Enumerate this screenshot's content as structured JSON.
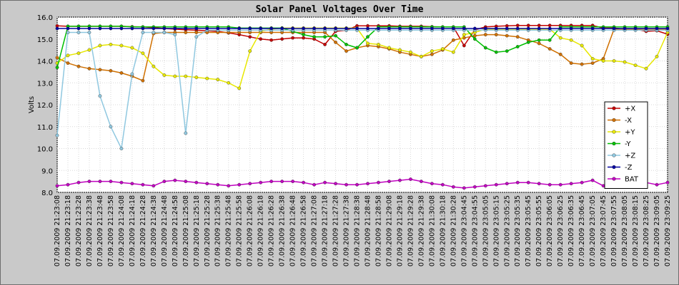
{
  "chart_data": {
    "type": "line",
    "title": "Solar Panel Voltages Over Time",
    "xlabel": "",
    "ylabel": "Volts",
    "ylim": [
      8.0,
      16.0
    ],
    "yticks": [
      "8.0",
      "9.0",
      "10.0",
      "11.0",
      "12.0",
      "13.0",
      "14.0",
      "15.0",
      "16.0"
    ],
    "grid": true,
    "legend_position": "right",
    "x": [
      "07.09.2009 21:23:08",
      "07.09.2009 21:23:18",
      "07.09.2009 21:23:28",
      "07.09.2009 21:23:38",
      "07.09.2009 21:23:48",
      "07.09.2009 21:23:58",
      "07.09.2009 21:24:08",
      "07.09.2009 21:24:18",
      "07.09.2009 21:24:28",
      "07.09.2009 21:24:38",
      "07.09.2009 21:24:48",
      "07.09.2009 21:24:58",
      "07.09.2009 21:25:08",
      "07.09.2009 21:25:18",
      "07.09.2009 21:25:28",
      "07.09.2009 21:25:38",
      "07.09.2009 21:25:48",
      "07.09.2009 21:25:58",
      "07.09.2009 21:26:08",
      "07.09.2009 21:26:18",
      "07.09.2009 21:26:28",
      "07.09.2009 21:26:38",
      "07.09.2009 21:26:48",
      "07.09.2009 21:26:58",
      "07.09.2009 21:27:08",
      "07.09.2009 21:27:18",
      "07.09.2009 21:27:28",
      "07.09.2009 21:27:38",
      "07.09.2009 21:28:38",
      "07.09.2009 21:28:48",
      "07.09.2009 21:28:58",
      "07.09.2009 21:29:08",
      "07.09.2009 21:29:18",
      "07.09.2009 21:29:28",
      "07.09.2009 21:29:38",
      "07.09.2009 21:30:08",
      "07.09.2009 21:30:18",
      "07.09.2009 21:30:28",
      "07.09.2009 23:04:45",
      "07.09.2009 23:04:55",
      "07.09.2009 23:05:05",
      "07.09.2009 23:05:15",
      "07.09.2009 23:05:25",
      "07.09.2009 23:05:35",
      "07.09.2009 23:05:45",
      "07.09.2009 23:05:55",
      "07.09.2009 23:06:05",
      "07.09.2009 23:06:25",
      "07.09.2009 23:06:35",
      "07.09.2009 23:06:45",
      "07.09.2009 23:07:05",
      "07.09.2009 23:07:45",
      "07.09.2009 23:07:55",
      "07.09.2009 23:08:05",
      "07.09.2009 23:08:15",
      "07.09.2009 23:08:25",
      "07.09.2009 23:09:05",
      "07.09.2009 23:09:25"
    ],
    "series": [
      {
        "name": "+X",
        "color": "#c40000",
        "values": [
          15.6,
          15.58,
          15.58,
          15.58,
          15.58,
          15.58,
          15.58,
          15.56,
          15.55,
          15.52,
          15.48,
          15.45,
          15.42,
          15.4,
          15.38,
          15.35,
          15.28,
          15.2,
          15.1,
          15.0,
          14.95,
          15.0,
          15.05,
          15.05,
          15.0,
          14.75,
          15.35,
          15.4,
          15.6,
          15.6,
          15.6,
          15.6,
          15.58,
          15.58,
          15.58,
          15.56,
          15.55,
          15.55,
          14.7,
          15.42,
          15.55,
          15.58,
          15.6,
          15.62,
          15.62,
          15.62,
          15.62,
          15.62,
          15.62,
          15.62,
          15.62,
          15.5,
          15.5,
          15.45,
          15.45,
          15.35,
          15.38,
          15.22
        ]
      },
      {
        "name": "-X",
        "color": "#d07000",
        "values": [
          14.15,
          13.9,
          13.75,
          13.65,
          13.6,
          13.55,
          13.45,
          13.3,
          13.1,
          15.25,
          15.3,
          15.3,
          15.3,
          15.3,
          15.3,
          15.3,
          15.3,
          15.3,
          15.3,
          15.3,
          15.3,
          15.3,
          15.3,
          15.3,
          15.3,
          15.3,
          14.85,
          14.45,
          14.6,
          14.7,
          14.65,
          14.55,
          14.4,
          14.3,
          14.2,
          14.3,
          14.5,
          14.95,
          15.05,
          15.15,
          15.2,
          15.2,
          15.15,
          15.1,
          14.95,
          14.8,
          14.55,
          14.3,
          13.9,
          13.85,
          13.9,
          14.1,
          15.45,
          15.45,
          15.45,
          15.45,
          15.45,
          15.45
        ]
      },
      {
        "name": "+Y",
        "color": "#e8e800",
        "values": [
          13.9,
          14.25,
          14.35,
          14.5,
          14.7,
          14.75,
          14.7,
          14.6,
          14.35,
          13.75,
          13.35,
          13.3,
          13.3,
          13.25,
          13.2,
          13.15,
          13.0,
          12.75,
          14.45,
          15.35,
          15.45,
          15.5,
          15.5,
          15.5,
          15.5,
          15.5,
          15.5,
          15.5,
          15.5,
          14.8,
          14.75,
          14.6,
          14.5,
          14.4,
          14.2,
          14.45,
          14.55,
          14.4,
          15.2,
          15.3,
          15.45,
          15.45,
          15.45,
          15.45,
          15.45,
          15.45,
          15.45,
          15.05,
          14.95,
          14.7,
          14.1,
          14.0,
          14.0,
          13.95,
          13.8,
          13.65,
          14.2,
          15.3
        ]
      },
      {
        "name": "-Y",
        "color": "#00c000",
        "values": [
          13.7,
          15.58,
          15.58,
          15.58,
          15.58,
          15.58,
          15.58,
          15.55,
          15.55,
          15.55,
          15.55,
          15.55,
          15.55,
          15.55,
          15.55,
          15.55,
          15.55,
          15.5,
          15.5,
          15.5,
          15.5,
          15.5,
          15.35,
          15.2,
          15.1,
          15.1,
          15.15,
          14.75,
          14.6,
          15.1,
          15.55,
          15.55,
          15.55,
          15.55,
          15.55,
          15.55,
          15.55,
          15.55,
          15.55,
          15.0,
          14.6,
          14.4,
          14.45,
          14.65,
          14.85,
          14.95,
          14.95,
          15.55,
          15.55,
          15.55,
          15.55,
          15.55,
          15.55,
          15.55,
          15.55,
          15.55,
          15.55,
          15.55
        ]
      },
      {
        "name": "+Z",
        "color": "#90c8e0",
        "values": [
          10.6,
          15.3,
          15.3,
          15.3,
          12.4,
          11.0,
          10.0,
          13.4,
          15.3,
          15.3,
          15.3,
          15.2,
          10.7,
          15.1,
          15.4,
          15.4,
          15.4,
          15.4,
          15.4,
          15.4,
          15.4,
          15.4,
          15.4,
          15.4,
          15.4,
          15.4,
          15.4,
          15.4,
          15.4,
          15.4,
          15.4,
          15.4,
          15.4,
          15.4,
          15.4,
          15.4,
          15.4,
          15.4,
          15.4,
          15.4,
          15.4,
          15.4,
          15.4,
          15.4,
          15.4,
          15.4,
          15.4,
          15.4,
          15.4,
          15.4,
          15.4,
          15.4,
          15.4,
          15.4,
          15.4,
          15.4,
          15.4,
          15.4
        ]
      },
      {
        "name": "-Z",
        "color": "#0000a0",
        "values": [
          15.48,
          15.48,
          15.48,
          15.48,
          15.48,
          15.48,
          15.48,
          15.48,
          15.48,
          15.48,
          15.48,
          15.48,
          15.48,
          15.48,
          15.48,
          15.48,
          15.48,
          15.48,
          15.48,
          15.48,
          15.48,
          15.48,
          15.48,
          15.48,
          15.48,
          15.48,
          15.48,
          15.48,
          15.48,
          15.48,
          15.48,
          15.48,
          15.48,
          15.48,
          15.48,
          15.48,
          15.48,
          15.48,
          15.48,
          15.48,
          15.48,
          15.48,
          15.48,
          15.48,
          15.48,
          15.48,
          15.48,
          15.48,
          15.48,
          15.48,
          15.48,
          15.48,
          15.48,
          15.48,
          15.48,
          15.48,
          15.48,
          15.48
        ]
      },
      {
        "name": "BAT",
        "color": "#c000c0",
        "values": [
          8.3,
          8.35,
          8.45,
          8.5,
          8.5,
          8.5,
          8.45,
          8.4,
          8.35,
          8.3,
          8.5,
          8.55,
          8.5,
          8.45,
          8.4,
          8.35,
          8.3,
          8.35,
          8.4,
          8.45,
          8.5,
          8.5,
          8.5,
          8.45,
          8.35,
          8.45,
          8.4,
          8.35,
          8.35,
          8.4,
          8.45,
          8.5,
          8.55,
          8.6,
          8.5,
          8.4,
          8.35,
          8.25,
          8.2,
          8.25,
          8.3,
          8.35,
          8.4,
          8.45,
          8.45,
          8.4,
          8.35,
          8.35,
          8.4,
          8.45,
          8.55,
          8.3,
          8.35,
          8.4,
          8.4,
          8.45,
          8.35,
          8.45
        ]
      }
    ]
  }
}
